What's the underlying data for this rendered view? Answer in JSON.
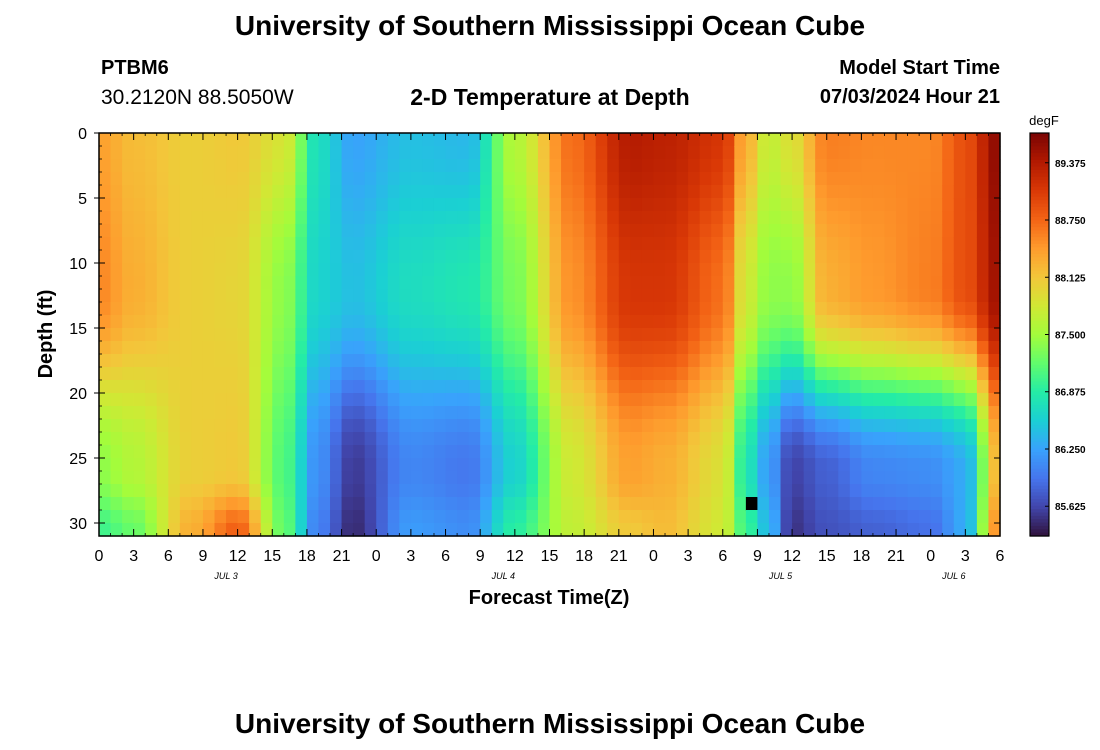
{
  "title": "University of Southern Mississippi Ocean Cube",
  "station": {
    "id": "PTBM6",
    "coordinates": "30.2120N  88.5050W"
  },
  "subtitle": "2-D Temperature at Depth",
  "model_start": {
    "label": "Model Start Time",
    "value": "07/03/2024 Hour 21"
  },
  "footer_title": "University of Southern Mississippi Ocean Cube",
  "chart_data": {
    "type": "heatmap",
    "xlabel": "Forecast Time(Z)",
    "ylabel": "Depth (ft)",
    "x_range_hours": [
      0,
      78
    ],
    "y_range_ft": [
      0,
      31
    ],
    "x_tick_labels": [
      "0",
      "3",
      "6",
      "9",
      "12",
      "15",
      "18",
      "21",
      "0",
      "3",
      "6",
      "9",
      "12",
      "15",
      "18",
      "21",
      "0",
      "3",
      "6",
      "9",
      "12",
      "15",
      "18",
      "21",
      "0",
      "3",
      "6"
    ],
    "y_ticks": [
      0,
      5,
      10,
      15,
      20,
      25,
      30
    ],
    "date_labels": [
      {
        "text": "JUL 3",
        "x_hour": 11
      },
      {
        "text": "JUL 4",
        "x_hour": 35
      },
      {
        "text": "JUL 5",
        "x_hour": 59
      },
      {
        "text": "JUL 6",
        "x_hour": 74
      }
    ],
    "colorbar": {
      "unit": "degF",
      "ticks": [
        "89.375",
        "88.750",
        "88.125",
        "87.500",
        "86.875",
        "86.250",
        "85.625"
      ],
      "range": [
        85.3,
        89.7
      ],
      "colors": [
        "#30123b",
        "#4145ab",
        "#4675ed",
        "#39a2fc",
        "#1bcfd4",
        "#24eca6",
        "#61fc6c",
        "#a4fc3b",
        "#d1e834",
        "#f3c63a",
        "#fe9b2d",
        "#f36315",
        "#d93806",
        "#b11901",
        "#7a0403"
      ]
    },
    "grid_hours_step": 1,
    "grid_depth_step_ft": 1,
    "temperature_grid_description": "temperature by forecast hour (0-78) and depth (0-31 ft); values estimated from color",
    "temperature_keyframes": [
      {
        "hour": 0,
        "surface": 88.4,
        "mid": 88.55,
        "deep": 87.4,
        "bottom": 87.0
      },
      {
        "hour": 3,
        "surface": 88.2,
        "mid": 88.3,
        "deep": 87.6,
        "bottom": 87.2
      },
      {
        "hour": 8,
        "surface": 88.05,
        "mid": 88.05,
        "deep": 88.05,
        "bottom": 88.3
      },
      {
        "hour": 12,
        "surface": 88.1,
        "mid": 88.0,
        "deep": 88.1,
        "bottom": 88.8
      },
      {
        "hour": 16,
        "surface": 87.85,
        "mid": 87.4,
        "deep": 87.1,
        "bottom": 87.2
      },
      {
        "hour": 19,
        "surface": 86.7,
        "mid": 86.6,
        "deep": 86.1,
        "bottom": 86.0
      },
      {
        "hour": 22,
        "surface": 86.25,
        "mid": 86.45,
        "deep": 85.55,
        "bottom": 85.45
      },
      {
        "hour": 27,
        "surface": 86.45,
        "mid": 86.7,
        "deep": 86.05,
        "bottom": 86.2
      },
      {
        "hour": 32,
        "surface": 86.4,
        "mid": 86.8,
        "deep": 85.95,
        "bottom": 86.1
      },
      {
        "hour": 36,
        "surface": 87.6,
        "mid": 87.3,
        "deep": 86.6,
        "bottom": 86.9
      },
      {
        "hour": 41,
        "surface": 88.7,
        "mid": 88.5,
        "deep": 87.8,
        "bottom": 87.7
      },
      {
        "hour": 46,
        "surface": 89.35,
        "mid": 89.1,
        "deep": 88.4,
        "bottom": 88.1
      },
      {
        "hour": 49,
        "surface": 89.3,
        "mid": 89.1,
        "deep": 88.3,
        "bottom": 88.2
      },
      {
        "hour": 54,
        "surface": 89.1,
        "mid": 88.7,
        "deep": 87.9,
        "bottom": 87.8
      },
      {
        "hour": 56,
        "surface": 88.3,
        "mid": 87.8,
        "deep": 86.8,
        "bottom": 87.0
      },
      {
        "hour": 58,
        "surface": 87.7,
        "mid": 87.4,
        "deep": 86.2,
        "bottom": 86.4
      },
      {
        "hour": 60,
        "surface": 87.9,
        "mid": 87.4,
        "deep": 85.6,
        "bottom": 85.5
      },
      {
        "hour": 63,
        "surface": 88.6,
        "mid": 88.3,
        "deep": 85.8,
        "bottom": 85.7
      },
      {
        "hour": 67,
        "surface": 88.55,
        "mid": 88.45,
        "deep": 86.05,
        "bottom": 85.8
      },
      {
        "hour": 72,
        "surface": 88.55,
        "mid": 88.6,
        "deep": 86.1,
        "bottom": 85.9
      },
      {
        "hour": 75,
        "surface": 88.9,
        "mid": 88.9,
        "deep": 86.3,
        "bottom": 86.3
      },
      {
        "hour": 78,
        "surface": 89.6,
        "mid": 89.5,
        "deep": 88.3,
        "bottom": 88.6
      }
    ],
    "missing_cell": {
      "hour": 56.5,
      "depth_ft": 28.5
    }
  }
}
